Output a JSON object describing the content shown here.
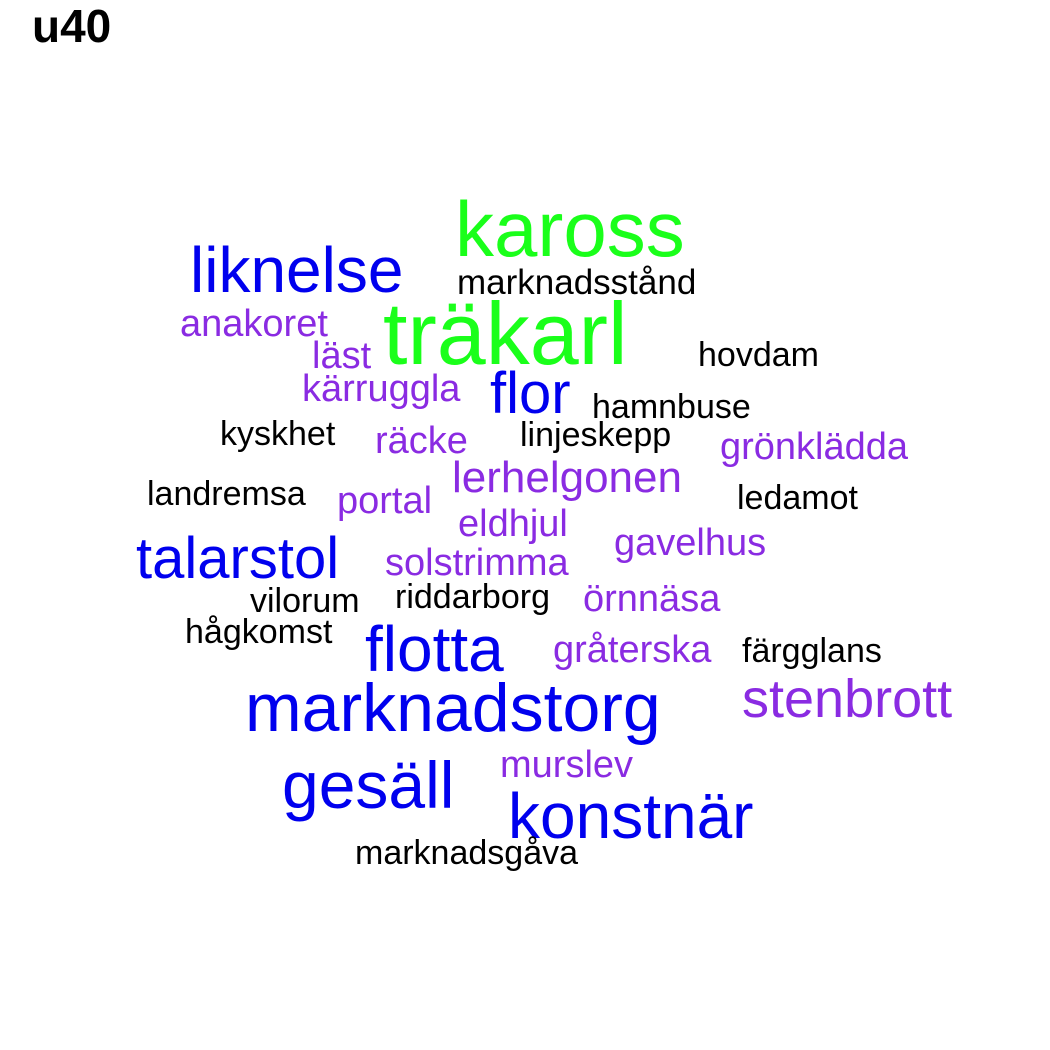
{
  "title": "u40",
  "colors": {
    "green": "#1aff1a",
    "blue": "#0000ee",
    "purple": "#8a2be2",
    "black": "#000000"
  },
  "words": [
    {
      "text": "kaross",
      "color": "green"
    },
    {
      "text": "liknelse",
      "color": "blue"
    },
    {
      "text": "marknadsstånd",
      "color": "black"
    },
    {
      "text": "träkarl",
      "color": "green"
    },
    {
      "text": "anakoret",
      "color": "purple"
    },
    {
      "text": "läst",
      "color": "purple"
    },
    {
      "text": "hovdam",
      "color": "black"
    },
    {
      "text": "kärruggla",
      "color": "purple"
    },
    {
      "text": "flor",
      "color": "blue"
    },
    {
      "text": "hamnbuse",
      "color": "black"
    },
    {
      "text": "kyskhet",
      "color": "black"
    },
    {
      "text": "räcke",
      "color": "purple"
    },
    {
      "text": "linjeskepp",
      "color": "black"
    },
    {
      "text": "grönklädda",
      "color": "purple"
    },
    {
      "text": "lerhelgonen",
      "color": "purple"
    },
    {
      "text": "landremsa",
      "color": "black"
    },
    {
      "text": "portal",
      "color": "purple"
    },
    {
      "text": "ledamot",
      "color": "black"
    },
    {
      "text": "eldhjul",
      "color": "purple"
    },
    {
      "text": "gavelhus",
      "color": "purple"
    },
    {
      "text": "talarstol",
      "color": "blue"
    },
    {
      "text": "solstrimma",
      "color": "purple"
    },
    {
      "text": "vilorum",
      "color": "black"
    },
    {
      "text": "riddarborg",
      "color": "black"
    },
    {
      "text": "örnnäsa",
      "color": "purple"
    },
    {
      "text": "hågkomst",
      "color": "black"
    },
    {
      "text": "flotta",
      "color": "blue"
    },
    {
      "text": "gråterska",
      "color": "purple"
    },
    {
      "text": "färgglans",
      "color": "black"
    },
    {
      "text": "marknadstorg",
      "color": "blue"
    },
    {
      "text": "stenbrott",
      "color": "purple"
    },
    {
      "text": "murslev",
      "color": "purple"
    },
    {
      "text": "gesäll",
      "color": "blue"
    },
    {
      "text": "konstnär",
      "color": "blue"
    },
    {
      "text": "marknadsgåva",
      "color": "black"
    }
  ]
}
